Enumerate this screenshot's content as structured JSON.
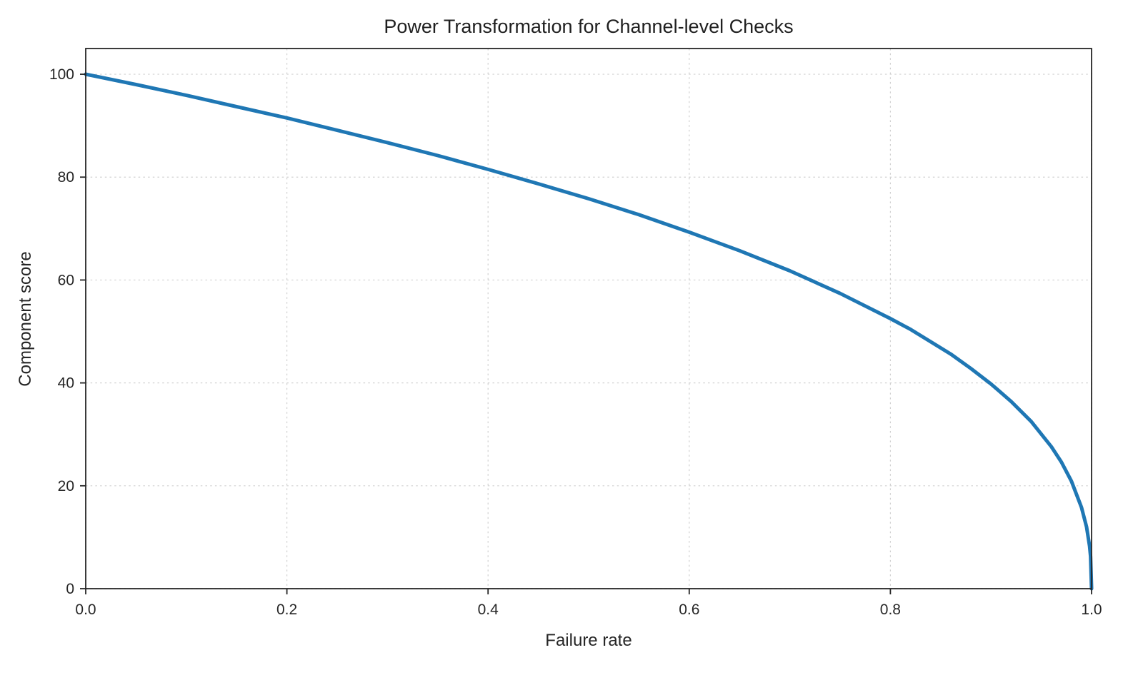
{
  "chart_data": {
    "type": "line",
    "title": "Power Transformation for Channel-level Checks",
    "xlabel": "Failure rate",
    "ylabel": "Component score",
    "xlim": [
      0,
      1
    ],
    "ylim": [
      0,
      105
    ],
    "grid": true,
    "grid_style": "dashed",
    "legend": "none",
    "xticks": [
      0,
      0.2,
      0.4,
      0.6,
      0.8,
      1.0
    ],
    "xtick_labels": [
      "0.0",
      "0.2",
      "0.4",
      "0.6",
      "0.8",
      "1.0"
    ],
    "yticks": [
      0,
      20,
      40,
      60,
      80,
      100
    ],
    "ytick_labels": [
      "0",
      "20",
      "40",
      "60",
      "80",
      "100"
    ],
    "colors": {
      "line": "#1f77b4",
      "grid": "#d0d0d0",
      "spine": "#262626",
      "text": "#262626"
    },
    "series": [
      {
        "name": "component-score-curve",
        "x": [
          0,
          0.05,
          0.1,
          0.15,
          0.2,
          0.25,
          0.3,
          0.35,
          0.4,
          0.45,
          0.5,
          0.55,
          0.6,
          0.65,
          0.7,
          0.75,
          0.8,
          0.82,
          0.84,
          0.86,
          0.88,
          0.9,
          0.92,
          0.94,
          0.96,
          0.97,
          0.98,
          0.99,
          0.995,
          0.998,
          0.999,
          1.0
        ],
        "y": [
          100,
          98.0,
          95.9,
          93.7,
          91.5,
          89.1,
          86.7,
          84.2,
          81.5,
          78.7,
          75.8,
          72.7,
          69.3,
          65.7,
          61.8,
          57.4,
          52.5,
          50.4,
          48.0,
          45.6,
          42.8,
          39.8,
          36.4,
          32.5,
          27.6,
          24.6,
          20.9,
          15.8,
          12.0,
          8.3,
          6.3,
          0
        ]
      }
    ]
  }
}
